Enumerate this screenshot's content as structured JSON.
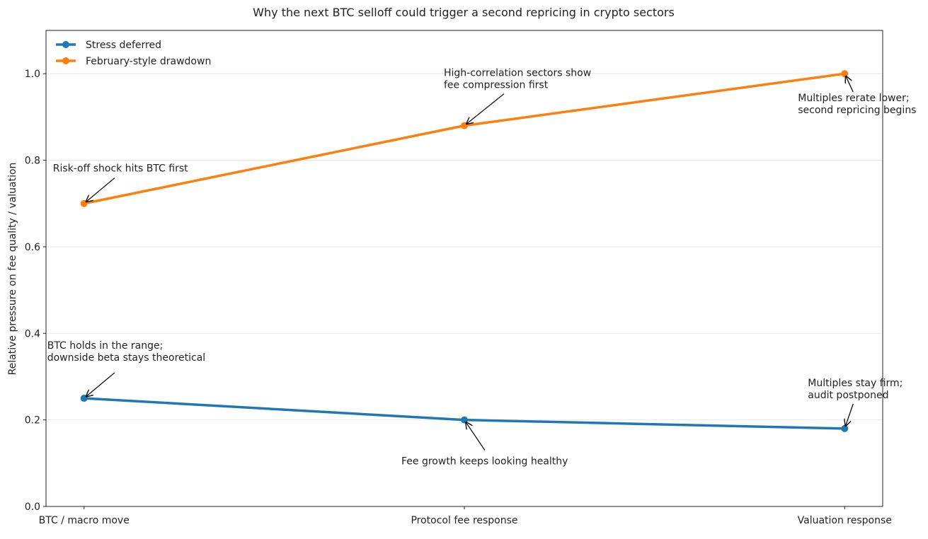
{
  "chart_data": {
    "type": "line",
    "title": "Why the next BTC selloff could trigger a second repricing in crypto sectors",
    "xlabel": "",
    "ylabel": "Relative pressure on fee quality / valuation",
    "categories": [
      "BTC / macro move",
      "Protocol fee response",
      "Valuation response"
    ],
    "ylim": [
      0,
      1.1
    ],
    "yticks": [
      "0.0",
      "0.2",
      "0.4",
      "0.6",
      "0.8",
      "1.0"
    ],
    "grid": "horizontal",
    "legend": "top-left",
    "series": [
      {
        "name": "Stress deferred",
        "color": "#1f77b4",
        "values": [
          0.25,
          0.2,
          0.18
        ]
      },
      {
        "name": "February-style drawdown",
        "color": "#ff7f0e",
        "values": [
          0.7,
          0.88,
          1.0
        ]
      }
    ],
    "annotations": [
      {
        "series": 1,
        "point": 0,
        "text": [
          "Risk-off shock hits BTC first"
        ]
      },
      {
        "series": 1,
        "point": 1,
        "text": [
          "High-correlation sectors show",
          "fee compression first"
        ]
      },
      {
        "series": 1,
        "point": 2,
        "text": [
          "Multiples rerate lower;",
          "second repricing begins"
        ]
      },
      {
        "series": 0,
        "point": 0,
        "text": [
          "BTC holds in the range;",
          "downside beta stays theoretical"
        ]
      },
      {
        "series": 0,
        "point": 1,
        "text": [
          "Fee growth keeps looking healthy"
        ]
      },
      {
        "series": 0,
        "point": 2,
        "text": [
          "Multiples stay firm;",
          "audit postponed"
        ]
      }
    ]
  }
}
